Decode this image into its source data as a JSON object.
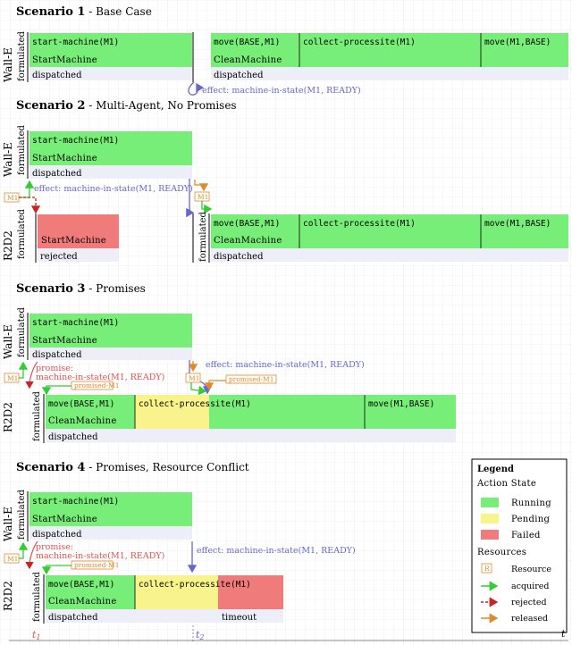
{
  "labels": {
    "formulated": "formulated",
    "dispatched": "dispatched",
    "rejected": "rejected",
    "timeout": "timeout",
    "m1_tag": "M1",
    "promised_m1": "promised-M1"
  },
  "agents": {
    "walle": "Wall-E",
    "r2d2": "R2D2"
  },
  "scenarios": [
    {
      "title": "Scenario 1",
      "subtitle": " - Base Case"
    },
    {
      "title": "Scenario 2",
      "subtitle": " - Multi-Agent, No Promises"
    },
    {
      "title": "Scenario 3",
      "subtitle": " - Promises"
    },
    {
      "title": "Scenario 4",
      "subtitle": " - Promises, Resource Conflict"
    }
  ],
  "actions": {
    "start_machine": "start-machine(M1)",
    "start_machine_sc": "StartMachine",
    "move_base_m1": "move(BASE,M1)",
    "collect": "collect-processite(M1)",
    "move_m1_base": "move(M1,BASE)",
    "clean_machine_sc": "CleanMachine"
  },
  "effect_text": "effect: machine-in-state(M1, READY)",
  "promise_label": "promise:",
  "promise_text": "machine-in-state(M1, READY)",
  "legend": {
    "title": "Legend",
    "action_state": "Action State",
    "running": "Running",
    "pending": "Pending",
    "failed": "Failed",
    "resources": "Resources",
    "resource": "Resource",
    "resource_tag": "R",
    "acquired": "acquired",
    "rejected": "rejected",
    "released": "released"
  },
  "colors": {
    "running": "#77ee77",
    "pending": "#f8f38a",
    "failed": "#f07b7b",
    "effect": "#6666cc",
    "promise": "#e05050",
    "acquired": "#33cc33",
    "rejected": "#cc2222",
    "released": "#e08a2c"
  },
  "time_axis": {
    "t1": "t",
    "t1_sub": "1",
    "t2": "t",
    "t2_sub": "2",
    "t": "t"
  }
}
